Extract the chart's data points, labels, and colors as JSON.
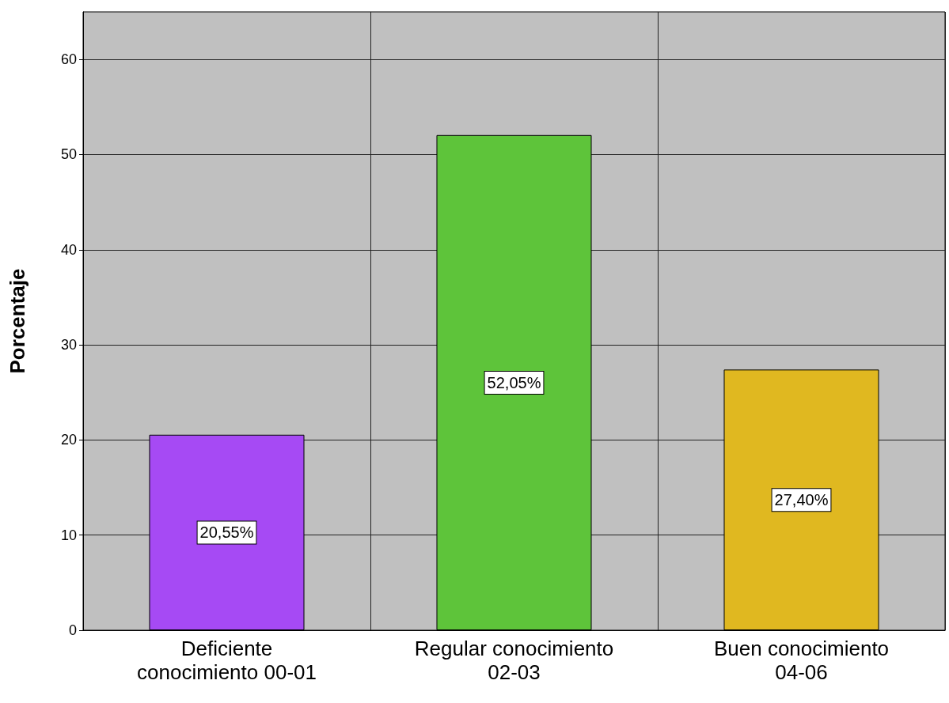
{
  "chart_data": {
    "type": "bar",
    "ylabel": "Porcentaje",
    "categories": [
      "Deficiente\nconocimiento 00-01",
      "Regular conocimiento\n02-03",
      "Buen conocimiento\n04-06"
    ],
    "values": [
      20.55,
      52.05,
      27.4
    ],
    "value_labels": [
      "20,55%",
      "52,05%",
      "27,40%"
    ],
    "colors": [
      "#a64af4",
      "#5ec43a",
      "#e0b820"
    ],
    "ylim": [
      0,
      65
    ],
    "yticks": [
      0,
      10,
      20,
      30,
      40,
      50,
      60
    ],
    "grid": true
  }
}
